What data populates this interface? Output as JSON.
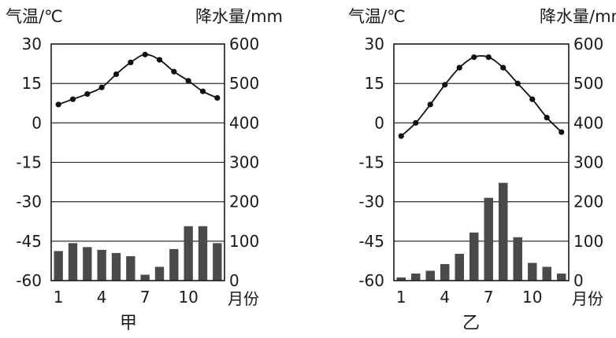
{
  "chart_data": [
    {
      "type": "climate",
      "caption": "甲",
      "left_axis_label": "气温/℃",
      "right_axis_label": "降水量/mm",
      "x_axis_unit": "月份",
      "x_ticks": [
        "1",
        "4",
        "7",
        "10"
      ],
      "left_ticks": [
        "30",
        "15",
        "0",
        "-15",
        "-30",
        "-45",
        "-60"
      ],
      "right_ticks": [
        "600",
        "500",
        "400",
        "300",
        "200",
        "100",
        "0"
      ],
      "temp_lim": [
        -60,
        30
      ],
      "precip_lim": [
        0,
        600
      ],
      "months": [
        1,
        2,
        3,
        4,
        5,
        6,
        7,
        8,
        9,
        10,
        11,
        12
      ],
      "temperature": [
        7,
        9,
        11,
        13.5,
        18.5,
        23,
        26,
        24,
        19.5,
        16,
        12,
        9.5
      ],
      "precipitation": [
        75,
        95,
        85,
        78,
        70,
        62,
        15,
        35,
        80,
        138,
        138,
        95
      ]
    },
    {
      "type": "climate",
      "caption": "乙",
      "left_axis_label": "气温/℃",
      "right_axis_label": "降水量/mm",
      "x_axis_unit": "月份",
      "x_ticks": [
        "1",
        "4",
        "7",
        "10"
      ],
      "left_ticks": [
        "30",
        "15",
        "0",
        "-15",
        "-30",
        "-45",
        "-60"
      ],
      "right_ticks": [
        "600",
        "500",
        "400",
        "300",
        "200",
        "100",
        "0"
      ],
      "temp_lim": [
        -60,
        30
      ],
      "precip_lim": [
        0,
        600
      ],
      "months": [
        1,
        2,
        3,
        4,
        5,
        6,
        7,
        8,
        9,
        10,
        11,
        12
      ],
      "temperature": [
        -5,
        0,
        7,
        14.5,
        21,
        25,
        25,
        21,
        15,
        9,
        2,
        -3.5
      ],
      "precipitation": [
        8,
        18,
        25,
        42,
        68,
        122,
        210,
        248,
        110,
        45,
        35,
        18
      ]
    }
  ]
}
